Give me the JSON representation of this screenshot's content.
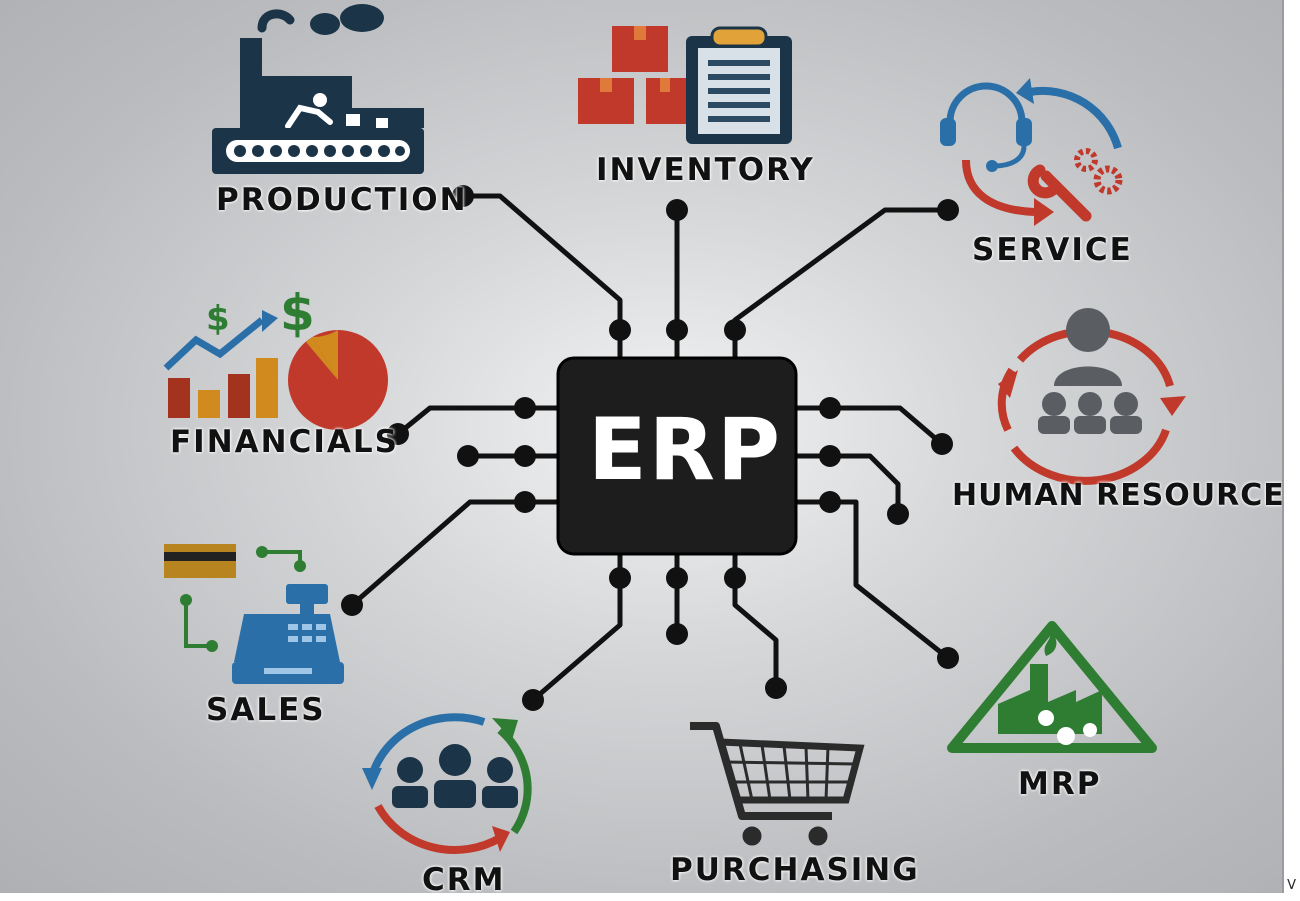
{
  "center": {
    "label": "ERP"
  },
  "modules": [
    {
      "id": "production",
      "label": "PRODUCTION",
      "icon": "factory-conveyor-icon"
    },
    {
      "id": "inventory",
      "label": "INVENTORY",
      "icon": "boxes-clipboard-icon"
    },
    {
      "id": "service",
      "label": "SERVICE",
      "icon": "headset-wrench-gears-icon"
    },
    {
      "id": "financials",
      "label": "FINANCIALS",
      "icon": "bar-chart-pie-dollar-icon"
    },
    {
      "id": "human_resources",
      "label": "HUMAN RESOURCES",
      "icon": "people-cycle-icon"
    },
    {
      "id": "sales",
      "label": "SALES",
      "icon": "cash-register-card-icon"
    },
    {
      "id": "crm",
      "label": "CRM",
      "icon": "customers-cycle-icon"
    },
    {
      "id": "purchasing",
      "label": "PURCHASING",
      "icon": "shopping-cart-icon"
    },
    {
      "id": "mrp",
      "label": "MRP",
      "icon": "factory-warning-triangle-icon"
    }
  ],
  "corner_mark": "V",
  "colors": {
    "chip": "#1d1d1d",
    "trace": "#111111",
    "dark_navy": "#1c3447",
    "red": "#c0392b",
    "blue": "#2a6fa8",
    "green": "#2f7d32",
    "orange": "#d08a1e",
    "gray": "#5a5d61"
  }
}
